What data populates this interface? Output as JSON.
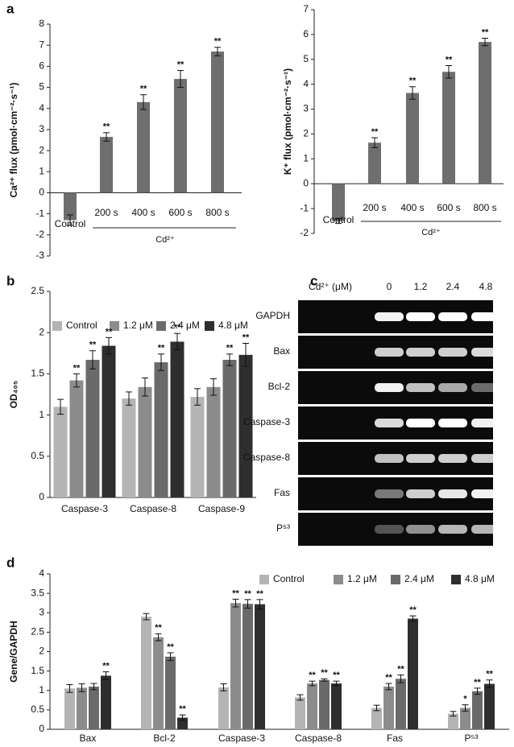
{
  "panel_labels": [
    "a",
    "b",
    "c",
    "d"
  ],
  "chart_data": [
    {
      "type": "bar",
      "ylabel": "Ca²⁺ flux (pmol·cm⁻²·s⁻¹)",
      "categories": [
        "Control",
        "200 s",
        "400 s",
        "600 s",
        "800 s"
      ],
      "values": [
        -1.3,
        2.65,
        4.3,
        5.4,
        6.7
      ],
      "errors": [
        0.25,
        0.2,
        0.35,
        0.4,
        0.2
      ],
      "annotations": [
        null,
        "**",
        "**",
        "**",
        "**"
      ],
      "group_label": "Cd²⁺",
      "color": "#6e6e6e",
      "ylim": [
        -3,
        8
      ],
      "yticks": [
        -3,
        -2,
        -1,
        0,
        1,
        2,
        3,
        4,
        5,
        6,
        7,
        8
      ]
    },
    {
      "type": "bar",
      "ylabel": "K⁺ flux (pmol·cm⁻²·s⁻¹)",
      "categories": [
        "Control",
        "200 s",
        "400 s",
        "600 s",
        "800 s"
      ],
      "values": [
        -1.5,
        1.65,
        3.65,
        4.5,
        5.7
      ],
      "errors": [
        0.1,
        0.2,
        0.25,
        0.25,
        0.15
      ],
      "annotations": [
        null,
        "**",
        "**",
        "**",
        "**"
      ],
      "group_label": "Cd²⁺",
      "color": "#6e6e6e",
      "ylim": [
        -2,
        7
      ],
      "yticks": [
        -2,
        -1,
        0,
        1,
        2,
        3,
        4,
        5,
        6,
        7
      ]
    },
    {
      "type": "grouped_bar",
      "ylabel": "OD₄₀₅",
      "categories": [
        "Caspase-3",
        "Caspase-8",
        "Caspase-9"
      ],
      "series": [
        {
          "name": "Control",
          "color": "#b4b4b4",
          "values": [
            1.1,
            1.2,
            1.22
          ],
          "errors": [
            0.09,
            0.08,
            0.1
          ],
          "annotations": [
            null,
            null,
            null
          ]
        },
        {
          "name": "1.2 μM",
          "color": "#8c8c8c",
          "values": [
            1.42,
            1.34,
            1.34
          ],
          "errors": [
            0.08,
            0.11,
            0.1
          ],
          "annotations": [
            "**",
            null,
            null
          ]
        },
        {
          "name": "2.4 μM",
          "color": "#6a6a6a",
          "values": [
            1.67,
            1.64,
            1.67
          ],
          "errors": [
            0.11,
            0.1,
            0.07
          ],
          "annotations": [
            "**",
            "**",
            "**"
          ]
        },
        {
          "name": "4.8 μM",
          "color": "#2e2e2e",
          "values": [
            1.84,
            1.89,
            1.73
          ],
          "errors": [
            0.1,
            0.1,
            0.14
          ],
          "annotations": [
            "**",
            "**",
            "**"
          ]
        }
      ],
      "ylim": [
        0,
        2.5
      ],
      "yticks": [
        0,
        0.5,
        1,
        1.5,
        2,
        2.5
      ]
    },
    {
      "type": "grouped_bar",
      "ylabel": "Gene/GAPDH",
      "categories": [
        "Bax",
        "Bcl-2",
        "Caspase-3",
        "Caspase-8",
        "Fas",
        "P⁵³"
      ],
      "series": [
        {
          "name": "Control",
          "color": "#b4b4b4",
          "values": [
            1.05,
            2.9,
            1.08,
            0.82,
            0.55,
            0.4
          ],
          "errors": [
            0.1,
            0.08,
            0.09,
            0.07,
            0.07,
            0.06
          ],
          "annotations": [
            null,
            null,
            null,
            null,
            null,
            null
          ]
        },
        {
          "name": "1.2 μM",
          "color": "#8c8c8c",
          "values": [
            1.07,
            2.37,
            3.25,
            1.18,
            1.1,
            0.55
          ],
          "errors": [
            0.1,
            0.09,
            0.1,
            0.06,
            0.08,
            0.08
          ],
          "annotations": [
            null,
            "**",
            "**",
            "**",
            "**",
            "*"
          ]
        },
        {
          "name": "2.4 μM",
          "color": "#6a6a6a",
          "values": [
            1.1,
            1.87,
            3.23,
            1.27,
            1.3,
            0.98
          ],
          "errors": [
            0.08,
            0.1,
            0.11,
            0.03,
            0.1,
            0.08
          ],
          "annotations": [
            null,
            "**",
            "**",
            "**",
            "**",
            "**"
          ]
        },
        {
          "name": "4.8 μM",
          "color": "#2e2e2e",
          "values": [
            1.38,
            0.3,
            3.22,
            1.18,
            2.85,
            1.17
          ],
          "errors": [
            0.1,
            0.07,
            0.12,
            0.06,
            0.07,
            0.1
          ],
          "annotations": [
            "**",
            "**",
            "**",
            "**",
            "**",
            "**"
          ]
        }
      ],
      "ylim": [
        0,
        4
      ],
      "yticks": [
        0,
        0.5,
        1,
        1.5,
        2,
        2.5,
        3,
        3.5,
        4
      ]
    }
  ],
  "gel": {
    "header": "Cd²⁺ (μM)",
    "lanes": [
      "0",
      "1.2",
      "2.4",
      "4.8"
    ],
    "rows": [
      "GAPDH",
      "Bax",
      "Bcl-2",
      "Caspase-3",
      "Caspase-8",
      "Fas",
      "P⁵³"
    ]
  }
}
